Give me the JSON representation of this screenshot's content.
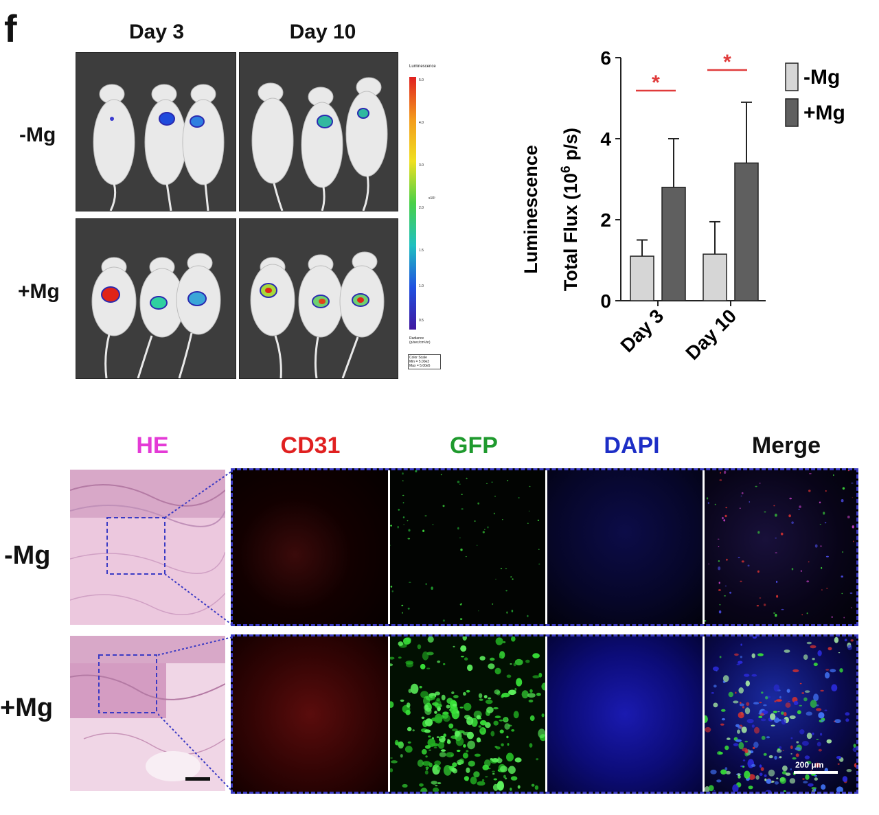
{
  "panel_label": "f",
  "imaging": {
    "columns": [
      "Day 3",
      "Day 10"
    ],
    "rows": [
      "-Mg",
      "+Mg"
    ],
    "colorbar": {
      "title": "Luminescence",
      "ticks": [
        "5.0",
        "4.0",
        "3.0",
        "2.0",
        "1.5",
        "1.0",
        "0.5"
      ],
      "unit": "x10²",
      "footer_lines": [
        "Radiance",
        "(p/sec/cm²/sr)"
      ],
      "box_lines": [
        "Color Scale",
        "Min = 5.00e3",
        "Max = 5.00e5"
      ]
    }
  },
  "chart": {
    "ylabel_line1": "Luminescence",
    "ylabel_line2_prefix": "Total Flux (10",
    "ylabel_line2_sup": "6",
    "ylabel_line2_suffix": " p/s)",
    "significance_mark": "*",
    "legend": [
      "-Mg",
      "+Mg"
    ],
    "colors": {
      "minus_mg": "#d6d6d6",
      "plus_mg": "#5f5f5f",
      "significance": "#e03a3a"
    }
  },
  "chart_data": {
    "type": "bar",
    "categories": [
      "Day 3",
      "Day 10"
    ],
    "series": [
      {
        "name": "-Mg",
        "values": [
          1.1,
          1.15
        ],
        "errors": [
          0.4,
          0.8
        ]
      },
      {
        "name": "+Mg",
        "values": [
          2.8,
          3.4
        ],
        "errors": [
          1.2,
          1.5
        ]
      }
    ],
    "ylabel": "Luminescence Total Flux (10^6 p/s)",
    "ylim": [
      0,
      6
    ],
    "yticks": [
      0,
      2,
      4,
      6
    ],
    "significance": [
      "*",
      "*"
    ]
  },
  "histology": {
    "columns": [
      "HE",
      "CD31",
      "GFP",
      "DAPI",
      "Merge"
    ],
    "column_colors": [
      "#e43ad6",
      "#e02020",
      "#1f9a2e",
      "#1d2ec6",
      "#111111"
    ],
    "rows": [
      "-Mg",
      "+Mg"
    ],
    "scale_bar_label": "200 μm"
  }
}
